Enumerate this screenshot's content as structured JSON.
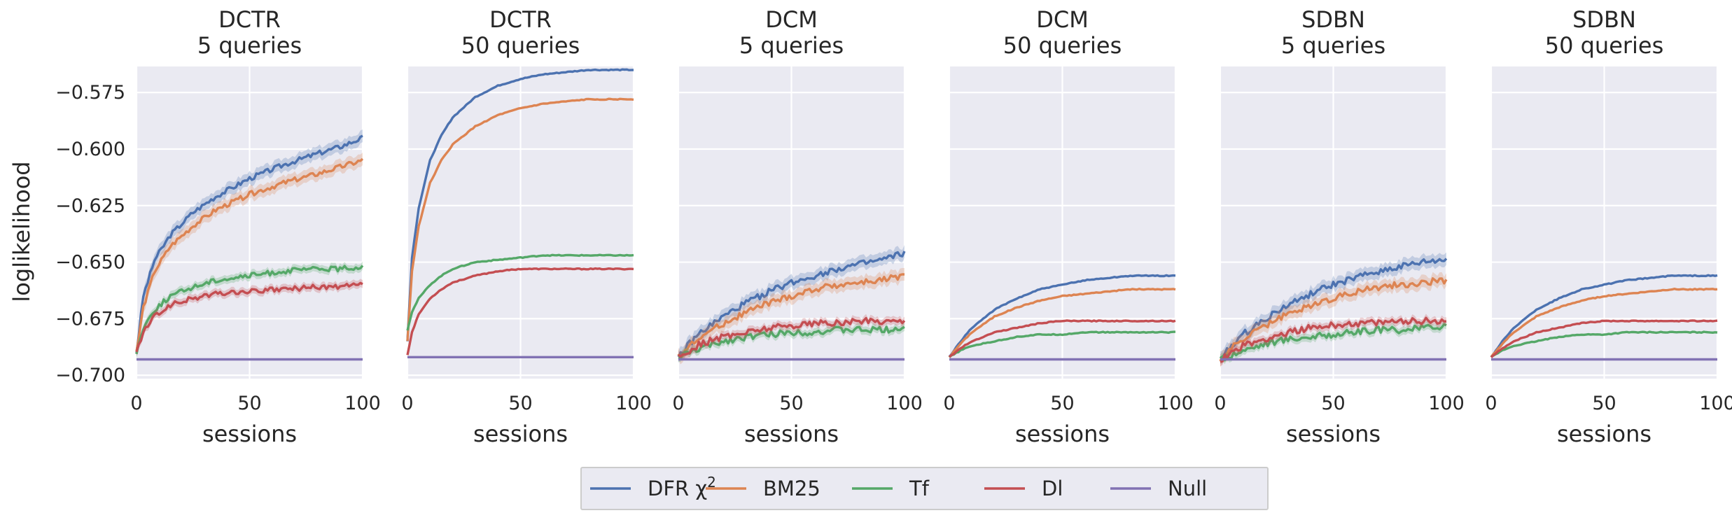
{
  "chart_data": {
    "type": "line",
    "ylabel": "loglikelihood",
    "xlabel": "sessions",
    "xlim": [
      0,
      100
    ],
    "ylim": [
      -0.7015,
      -0.5635
    ],
    "xticks": [
      0,
      50,
      100
    ],
    "yticks": [
      -0.7,
      -0.675,
      -0.65,
      -0.625,
      -0.6,
      -0.575
    ],
    "ytick_labels": [
      "−0.700",
      "−0.675",
      "−0.650",
      "−0.625",
      "−0.600",
      "−0.575"
    ],
    "grid": true,
    "legend_position": "bottom-center",
    "legend": [
      {
        "label": "DFR χ",
        "sup": "2",
        "color": "#4c72b0"
      },
      {
        "label": "BM25",
        "color": "#dd8452"
      },
      {
        "label": "Tf",
        "color": "#55a868"
      },
      {
        "label": "Dl",
        "color": "#c44e52"
      },
      {
        "label": "Null",
        "color": "#8172b3"
      }
    ],
    "panels": [
      {
        "title": [
          "DCTR",
          "5 queries"
        ],
        "band": true,
        "series": [
          {
            "name": "DFR χ²",
            "x": [
              0,
              3,
              8,
              15,
              25,
              35,
              50,
              65,
              80,
              90,
              100
            ],
            "y": [
              -0.69,
              -0.665,
              -0.649,
              -0.638,
              -0.628,
              -0.621,
              -0.613,
              -0.607,
              -0.602,
              -0.599,
              -0.595
            ]
          },
          {
            "name": "BM25",
            "x": [
              0,
              3,
              8,
              15,
              25,
              35,
              50,
              65,
              80,
              90,
              100
            ],
            "y": [
              -0.69,
              -0.67,
              -0.654,
              -0.643,
              -0.634,
              -0.627,
              -0.62,
              -0.615,
              -0.611,
              -0.608,
              -0.605
            ]
          },
          {
            "name": "Tf",
            "x": [
              0,
              3,
              8,
              15,
              25,
              35,
              50,
              65,
              80,
              90,
              100
            ],
            "y": [
              -0.69,
              -0.679,
              -0.671,
              -0.665,
              -0.661,
              -0.658,
              -0.656,
              -0.654,
              -0.653,
              -0.653,
              -0.652
            ]
          },
          {
            "name": "Dl",
            "x": [
              0,
              3,
              8,
              15,
              25,
              35,
              50,
              65,
              80,
              90,
              100
            ],
            "y": [
              -0.69,
              -0.681,
              -0.674,
              -0.669,
              -0.666,
              -0.664,
              -0.663,
              -0.662,
              -0.661,
              -0.661,
              -0.66
            ]
          },
          {
            "name": "Null",
            "x": [
              0,
              100
            ],
            "y": [
              -0.693,
              -0.693
            ]
          }
        ]
      },
      {
        "title": [
          "DCTR",
          "50 queries"
        ],
        "band": false,
        "series": [
          {
            "name": "DFR χ²",
            "x": [
              0,
              2,
              5,
              10,
              15,
              20,
              30,
              40,
              50,
              60,
              70,
              80,
              90,
              100
            ],
            "y": [
              -0.685,
              -0.648,
              -0.626,
              -0.605,
              -0.594,
              -0.586,
              -0.577,
              -0.572,
              -0.569,
              -0.567,
              -0.566,
              -0.565,
              -0.565,
              -0.565
            ]
          },
          {
            "name": "BM25",
            "x": [
              0,
              2,
              5,
              10,
              15,
              20,
              30,
              40,
              50,
              60,
              70,
              80,
              90,
              100
            ],
            "y": [
              -0.685,
              -0.654,
              -0.634,
              -0.615,
              -0.605,
              -0.598,
              -0.59,
              -0.585,
              -0.582,
              -0.58,
              -0.579,
              -0.578,
              -0.578,
              -0.578
            ]
          },
          {
            "name": "Tf",
            "x": [
              0,
              2,
              5,
              10,
              15,
              20,
              30,
              40,
              50,
              60,
              70,
              80,
              90,
              100
            ],
            "y": [
              -0.68,
              -0.672,
              -0.666,
              -0.66,
              -0.656,
              -0.653,
              -0.65,
              -0.649,
              -0.648,
              -0.647,
              -0.647,
              -0.647,
              -0.647,
              -0.647
            ]
          },
          {
            "name": "Dl",
            "x": [
              0,
              2,
              5,
              10,
              15,
              20,
              30,
              40,
              50,
              60,
              70,
              80,
              90,
              100
            ],
            "y": [
              -0.691,
              -0.681,
              -0.673,
              -0.666,
              -0.662,
              -0.659,
              -0.656,
              -0.654,
              -0.653,
              -0.653,
              -0.653,
              -0.653,
              -0.653,
              -0.653
            ]
          },
          {
            "name": "Null",
            "x": [
              0,
              100
            ],
            "y": [
              -0.692,
              -0.692
            ]
          }
        ]
      },
      {
        "title": [
          "DCM",
          "5 queries"
        ],
        "band": true,
        "series": [
          {
            "name": "DFR χ²",
            "x": [
              0,
              5,
              10,
              20,
              30,
              40,
              50,
              60,
              70,
              80,
              90,
              100
            ],
            "y": [
              -0.692,
              -0.686,
              -0.681,
              -0.674,
              -0.668,
              -0.663,
              -0.659,
              -0.656,
              -0.653,
              -0.651,
              -0.649,
              -0.646
            ]
          },
          {
            "name": "BM25",
            "x": [
              0,
              5,
              10,
              20,
              30,
              40,
              50,
              60,
              70,
              80,
              90,
              100
            ],
            "y": [
              -0.692,
              -0.687,
              -0.683,
              -0.677,
              -0.672,
              -0.668,
              -0.665,
              -0.662,
              -0.66,
              -0.659,
              -0.658,
              -0.656
            ]
          },
          {
            "name": "Tf",
            "x": [
              0,
              5,
              10,
              20,
              30,
              40,
              50,
              60,
              70,
              80,
              90,
              100
            ],
            "y": [
              -0.692,
              -0.69,
              -0.688,
              -0.685,
              -0.683,
              -0.682,
              -0.681,
              -0.681,
              -0.68,
              -0.68,
              -0.68,
              -0.679
            ]
          },
          {
            "name": "Dl",
            "x": [
              0,
              5,
              10,
              20,
              30,
              40,
              50,
              60,
              70,
              80,
              90,
              100
            ],
            "y": [
              -0.692,
              -0.689,
              -0.686,
              -0.683,
              -0.681,
              -0.679,
              -0.678,
              -0.677,
              -0.677,
              -0.676,
              -0.676,
              -0.676
            ]
          },
          {
            "name": "Null",
            "x": [
              0,
              100
            ],
            "y": [
              -0.693,
              -0.693
            ]
          }
        ]
      },
      {
        "title": [
          "DCM",
          "50 queries"
        ],
        "band": false,
        "series": [
          {
            "name": "DFR χ²",
            "x": [
              0,
              5,
              10,
              20,
              30,
              40,
              50,
              60,
              70,
              80,
              90,
              100
            ],
            "y": [
              -0.692,
              -0.685,
              -0.679,
              -0.671,
              -0.666,
              -0.662,
              -0.66,
              -0.658,
              -0.657,
              -0.656,
              -0.656,
              -0.656
            ]
          },
          {
            "name": "BM25",
            "x": [
              0,
              5,
              10,
              20,
              30,
              40,
              50,
              60,
              70,
              80,
              90,
              100
            ],
            "y": [
              -0.692,
              -0.686,
              -0.681,
              -0.674,
              -0.67,
              -0.667,
              -0.665,
              -0.664,
              -0.663,
              -0.662,
              -0.662,
              -0.662
            ]
          },
          {
            "name": "Tf",
            "x": [
              0,
              5,
              10,
              20,
              30,
              40,
              50,
              60,
              70,
              80,
              90,
              100
            ],
            "y": [
              -0.692,
              -0.689,
              -0.687,
              -0.685,
              -0.683,
              -0.682,
              -0.682,
              -0.681,
              -0.681,
              -0.681,
              -0.681,
              -0.681
            ]
          },
          {
            "name": "Dl",
            "x": [
              0,
              5,
              10,
              20,
              30,
              40,
              50,
              60,
              70,
              80,
              90,
              100
            ],
            "y": [
              -0.692,
              -0.688,
              -0.685,
              -0.681,
              -0.679,
              -0.677,
              -0.676,
              -0.676,
              -0.676,
              -0.676,
              -0.676,
              -0.676
            ]
          },
          {
            "name": "Null",
            "x": [
              0,
              100
            ],
            "y": [
              -0.693,
              -0.693
            ]
          }
        ]
      },
      {
        "title": [
          "SDBN",
          "5 queries"
        ],
        "band": true,
        "series": [
          {
            "name": "DFR χ²",
            "x": [
              0,
              5,
              10,
              20,
              30,
              40,
              50,
              60,
              70,
              80,
              90,
              100
            ],
            "y": [
              -0.693,
              -0.687,
              -0.682,
              -0.675,
              -0.669,
              -0.664,
              -0.66,
              -0.657,
              -0.654,
              -0.652,
              -0.65,
              -0.649
            ]
          },
          {
            "name": "BM25",
            "x": [
              0,
              5,
              10,
              20,
              30,
              40,
              50,
              60,
              70,
              80,
              90,
              100
            ],
            "y": [
              -0.693,
              -0.688,
              -0.684,
              -0.678,
              -0.673,
              -0.669,
              -0.666,
              -0.663,
              -0.661,
              -0.66,
              -0.659,
              -0.658
            ]
          },
          {
            "name": "Tf",
            "x": [
              0,
              5,
              10,
              20,
              30,
              40,
              50,
              60,
              70,
              80,
              90,
              100
            ],
            "y": [
              -0.693,
              -0.691,
              -0.689,
              -0.686,
              -0.684,
              -0.683,
              -0.682,
              -0.681,
              -0.68,
              -0.68,
              -0.679,
              -0.678
            ]
          },
          {
            "name": "Dl",
            "x": [
              0,
              5,
              10,
              20,
              30,
              40,
              50,
              60,
              70,
              80,
              90,
              100
            ],
            "y": [
              -0.693,
              -0.69,
              -0.687,
              -0.684,
              -0.681,
              -0.679,
              -0.678,
              -0.677,
              -0.677,
              -0.676,
              -0.676,
              -0.676
            ]
          },
          {
            "name": "Null",
            "x": [
              0,
              100
            ],
            "y": [
              -0.693,
              -0.693
            ]
          }
        ]
      },
      {
        "title": [
          "SDBN",
          "50 queries"
        ],
        "band": false,
        "series": [
          {
            "name": "DFR χ²",
            "x": [
              0,
              5,
              10,
              20,
              30,
              40,
              50,
              60,
              70,
              80,
              90,
              100
            ],
            "y": [
              -0.692,
              -0.685,
              -0.679,
              -0.671,
              -0.666,
              -0.662,
              -0.66,
              -0.658,
              -0.657,
              -0.656,
              -0.656,
              -0.656
            ]
          },
          {
            "name": "BM25",
            "x": [
              0,
              5,
              10,
              20,
              30,
              40,
              50,
              60,
              70,
              80,
              90,
              100
            ],
            "y": [
              -0.692,
              -0.686,
              -0.681,
              -0.674,
              -0.67,
              -0.667,
              -0.665,
              -0.664,
              -0.663,
              -0.662,
              -0.662,
              -0.662
            ]
          },
          {
            "name": "Tf",
            "x": [
              0,
              5,
              10,
              20,
              30,
              40,
              50,
              60,
              70,
              80,
              90,
              100
            ],
            "y": [
              -0.692,
              -0.689,
              -0.687,
              -0.685,
              -0.683,
              -0.682,
              -0.682,
              -0.681,
              -0.681,
              -0.681,
              -0.681,
              -0.681
            ]
          },
          {
            "name": "Dl",
            "x": [
              0,
              5,
              10,
              20,
              30,
              40,
              50,
              60,
              70,
              80,
              90,
              100
            ],
            "y": [
              -0.692,
              -0.688,
              -0.685,
              -0.681,
              -0.679,
              -0.677,
              -0.676,
              -0.676,
              -0.676,
              -0.676,
              -0.676,
              -0.676
            ]
          },
          {
            "name": "Null",
            "x": [
              0,
              100
            ],
            "y": [
              -0.693,
              -0.693
            ]
          }
        ]
      }
    ]
  }
}
